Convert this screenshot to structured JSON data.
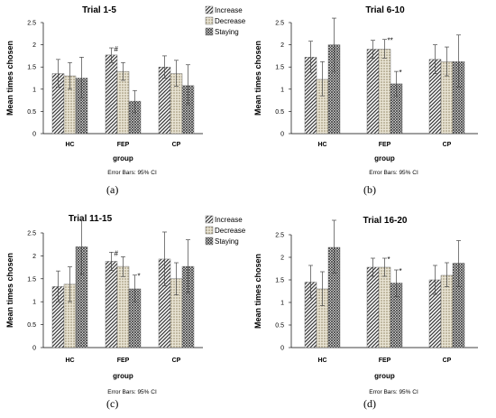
{
  "panels": [
    {
      "label": "(a)"
    },
    {
      "label": "(b)"
    },
    {
      "label": "(c)"
    },
    {
      "label": "(d)"
    }
  ],
  "styles": {
    "Increase": {
      "pattern": "diag",
      "color": "#3a3a3a"
    },
    "Decrease": {
      "pattern": "dots",
      "color": "#8a7d5c"
    },
    "Staying": {
      "pattern": "cross",
      "color": "#3a3a3a"
    }
  },
  "chart_data": [
    {
      "type": "bar",
      "title": "Trial 1-5",
      "xlabel": "group",
      "ylabel": "Mean times chosen",
      "note": "Error Bars: 95% CI",
      "categories": [
        "HC",
        "FEP",
        "CP"
      ],
      "ylim": [
        0,
        2.5
      ],
      "yticks": [
        "0",
        "0.5",
        "1",
        "1.5",
        "2",
        "2.5"
      ],
      "legend": "top-right",
      "series": [
        {
          "name": "Increase",
          "values": [
            1.35,
            1.77,
            1.5
          ],
          "ci_low": [
            1.05,
            1.6,
            1.25
          ],
          "ci_high": [
            1.67,
            1.93,
            1.75
          ]
        },
        {
          "name": "Decrease",
          "values": [
            1.3,
            1.4,
            1.35
          ],
          "ci_low": [
            1.0,
            1.2,
            1.07
          ],
          "ci_high": [
            1.6,
            1.6,
            1.65
          ]
        },
        {
          "name": "Staying",
          "values": [
            1.25,
            0.73,
            1.08
          ],
          "ci_low": [
            0.8,
            0.48,
            0.65
          ],
          "ci_high": [
            1.72,
            0.97,
            1.55
          ]
        }
      ],
      "annotations": [
        {
          "text": "#",
          "category": "FEP",
          "series": "Increase"
        }
      ]
    },
    {
      "type": "bar",
      "title": "Trial 6-10",
      "xlabel": "group",
      "ylabel": "Mean times chosen",
      "note": "Error Bars: 95% CI",
      "categories": [
        "HC",
        "FEP",
        "CP"
      ],
      "ylim": [
        0,
        2.5
      ],
      "yticks": [
        "0",
        "0.5",
        "1",
        "1.5",
        "2",
        "2.5"
      ],
      "legend": "none",
      "series": [
        {
          "name": "Increase",
          "values": [
            1.72,
            1.9,
            1.67
          ],
          "ci_low": [
            1.38,
            1.7,
            1.35
          ],
          "ci_high": [
            2.08,
            2.1,
            2.0
          ]
        },
        {
          "name": "Decrease",
          "values": [
            1.22,
            1.9,
            1.62
          ],
          "ci_low": [
            0.85,
            1.7,
            1.3
          ],
          "ci_high": [
            1.62,
            2.12,
            1.95
          ]
        },
        {
          "name": "Staying",
          "values": [
            2.0,
            1.12,
            1.62
          ],
          "ci_low": [
            1.4,
            0.85,
            1.05
          ],
          "ci_high": [
            2.6,
            1.4,
            2.22
          ]
        }
      ],
      "annotations": [
        {
          "text": "**",
          "category": "FEP",
          "series": "Decrease"
        },
        {
          "text": "*",
          "category": "FEP",
          "series": "Staying"
        }
      ]
    },
    {
      "type": "bar",
      "title": "Trial 11-15",
      "xlabel": "group",
      "ylabel": "Mean times chosen",
      "note": "Error Bars: 95% CI",
      "categories": [
        "HC",
        "FEP",
        "CP"
      ],
      "ylim": [
        0,
        2.5
      ],
      "yticks": [
        "0",
        "0.5",
        "1",
        "1.5",
        "2",
        "2.5"
      ],
      "legend": "top-right",
      "series": [
        {
          "name": "Increase",
          "values": [
            1.33,
            1.88,
            1.93
          ],
          "ci_low": [
            1.0,
            1.68,
            1.35
          ],
          "ci_high": [
            1.67,
            2.08,
            2.52
          ]
        },
        {
          "name": "Decrease",
          "values": [
            1.38,
            1.77,
            1.5
          ],
          "ci_low": [
            1.0,
            1.55,
            1.15
          ],
          "ci_high": [
            1.76,
            1.98,
            1.85
          ]
        },
        {
          "name": "Staying",
          "values": [
            2.2,
            1.28,
            1.77
          ],
          "ci_low": [
            1.6,
            1.0,
            1.2
          ],
          "ci_high": [
            2.78,
            1.58,
            2.35
          ]
        }
      ],
      "annotations": [
        {
          "text": "#",
          "category": "FEP",
          "series": "Increase"
        },
        {
          "text": "*",
          "category": "FEP",
          "series": "Staying"
        }
      ]
    },
    {
      "type": "bar",
      "title": "Trial 16-20",
      "xlabel": "group",
      "ylabel": "Mean times chosen",
      "note": "Error Bars: 95% CI",
      "categories": [
        "HC",
        "FEP",
        "CP"
      ],
      "ylim": [
        0,
        2.5
      ],
      "yticks": [
        "0",
        "0.5",
        "1",
        "1.5",
        "2",
        "2.5"
      ],
      "legend": "none",
      "series": [
        {
          "name": "Increase",
          "values": [
            1.45,
            1.78,
            1.5
          ],
          "ci_low": [
            1.1,
            1.58,
            1.18
          ],
          "ci_high": [
            1.82,
            1.98,
            1.82
          ]
        },
        {
          "name": "Decrease",
          "values": [
            1.3,
            1.78,
            1.6
          ],
          "ci_low": [
            0.93,
            1.58,
            1.35
          ],
          "ci_high": [
            1.68,
            1.98,
            1.88
          ]
        },
        {
          "name": "Staying",
          "values": [
            2.22,
            1.43,
            1.87
          ],
          "ci_low": [
            1.65,
            1.13,
            1.35
          ],
          "ci_high": [
            2.82,
            1.72,
            2.37
          ]
        }
      ],
      "annotations": [
        {
          "text": "*",
          "category": "FEP",
          "series": "Decrease"
        },
        {
          "text": "*",
          "category": "FEP",
          "series": "Staying"
        }
      ]
    }
  ]
}
